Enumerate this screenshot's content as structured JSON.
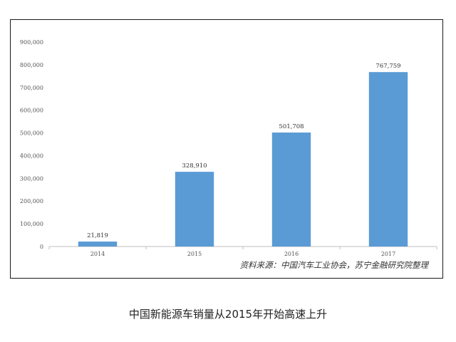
{
  "chart_data": {
    "type": "bar",
    "categories": [
      "2014",
      "2015",
      "2016",
      "2017"
    ],
    "values": [
      21819,
      328910,
      501708,
      767759
    ],
    "value_labels": [
      "21,819",
      "328,910",
      "501,708",
      "767,759"
    ],
    "y_ticks": [
      "0",
      "100,000",
      "200,000",
      "300,000",
      "400,000",
      "500,000",
      "600,000",
      "700,000",
      "800,000",
      "900,000"
    ],
    "ylim": [
      0,
      900000
    ],
    "bar_color": "#5b9bd5",
    "grid": false,
    "title": "",
    "xlabel": "",
    "ylabel": ""
  },
  "source_note": "资料来源：中国汽车工业协会，苏宁金融研究院整理",
  "caption": "中国新能源车销量从2015年开始高速上升"
}
